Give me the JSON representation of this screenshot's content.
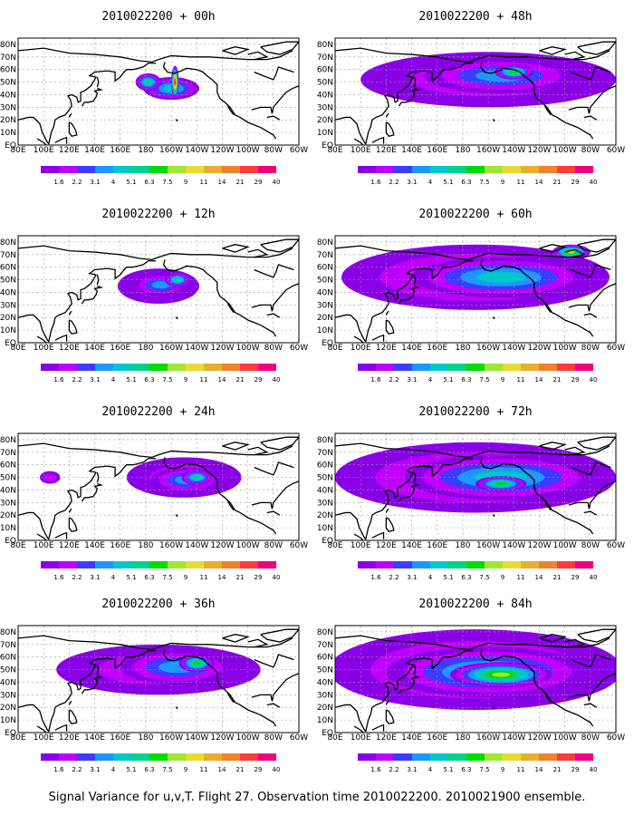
{
  "colors": {
    "land": "#ffffff",
    "coast": "#000000",
    "grid": "#9a9a9a",
    "scale": [
      "#8a00e6",
      "#c000ff",
      "#3c3cff",
      "#1e96ff",
      "#00c8c8",
      "#00d28c",
      "#00dc00",
      "#a0e632",
      "#e6dc32",
      "#e6af2d",
      "#f0822d",
      "#fa3c3c",
      "#f00082"
    ]
  },
  "colorbar": {
    "labels": [
      "1.6",
      "2.2",
      "3.1",
      "4",
      "5.1",
      "6.3",
      "7.5",
      "9",
      "11",
      "14",
      "21",
      "29",
      "40"
    ]
  },
  "axes": {
    "y_labels": [
      "80N",
      "70N",
      "60N",
      "50N",
      "40N",
      "30N",
      "20N",
      "10N",
      "EQ"
    ],
    "x_labels": [
      "80E",
      "100E",
      "120E",
      "140E",
      "160E",
      "180",
      "160W",
      "140W",
      "120W",
      "100W",
      "80W",
      "60W"
    ]
  },
  "footer": "Signal Variance for u,v,T. Flight 27. Observation time 2010022200. 2010021900 ensemble.",
  "chart_data": [
    {
      "type": "heatmap",
      "title": "2010022200 + 00h",
      "blobs": [
        {
          "lon": -160,
          "lat": 45,
          "rx": 22,
          "ry": 9,
          "level": 4
        },
        {
          "lon": -178,
          "lat": 50,
          "rx": 10,
          "ry": 7,
          "level": 5
        },
        {
          "lon": -157,
          "lat": 50,
          "rx": 3,
          "ry": 13,
          "level": 12
        }
      ]
    },
    {
      "type": "heatmap",
      "title": "2010022200 + 12h",
      "blobs": [
        {
          "lon": -170,
          "lat": 45,
          "rx": 32,
          "ry": 14,
          "level": 1
        },
        {
          "lon": -168,
          "lat": 46,
          "rx": 22,
          "ry": 9,
          "level": 3
        },
        {
          "lon": -155,
          "lat": 50,
          "rx": 10,
          "ry": 6,
          "level": 5
        }
      ]
    },
    {
      "type": "heatmap",
      "title": "2010022200 + 24h",
      "blobs": [
        {
          "lon": -150,
          "lat": 50,
          "rx": 45,
          "ry": 16,
          "level": 1
        },
        {
          "lon": -148,
          "lat": 48,
          "rx": 28,
          "ry": 10,
          "level": 3
        },
        {
          "lon": -140,
          "lat": 50,
          "rx": 12,
          "ry": 6,
          "level": 5
        },
        {
          "lon": 105,
          "lat": 50,
          "rx": 8,
          "ry": 5,
          "level": 1
        }
      ]
    },
    {
      "type": "heatmap",
      "title": "2010022200 + 36h",
      "blobs": [
        {
          "lon": -170,
          "lat": 50,
          "rx": 80,
          "ry": 20,
          "level": 1
        },
        {
          "lon": -155,
          "lat": 52,
          "rx": 45,
          "ry": 14,
          "level": 3
        },
        {
          "lon": -140,
          "lat": 55,
          "rx": 14,
          "ry": 7,
          "level": 6
        }
      ]
    },
    {
      "type": "heatmap",
      "title": "2010022200 + 48h",
      "blobs": [
        {
          "lon": -160,
          "lat": 52,
          "rx": 100,
          "ry": 22,
          "level": 1
        },
        {
          "lon": -150,
          "lat": 55,
          "rx": 60,
          "ry": 14,
          "level": 3
        },
        {
          "lon": -140,
          "lat": 58,
          "rx": 15,
          "ry": 6,
          "level": 6
        }
      ]
    },
    {
      "type": "heatmap",
      "title": "2010022200 + 60h",
      "blobs": [
        {
          "lon": -170,
          "lat": 52,
          "rx": 105,
          "ry": 26,
          "level": 2
        },
        {
          "lon": -150,
          "lat": 52,
          "rx": 70,
          "ry": 16,
          "level": 4
        },
        {
          "lon": -95,
          "lat": 72,
          "rx": 15,
          "ry": 6,
          "level": 7
        }
      ]
    },
    {
      "type": "heatmap",
      "title": "2010022200 + 72h",
      "blobs": [
        {
          "lon": -170,
          "lat": 50,
          "rx": 110,
          "ry": 28,
          "level": 2
        },
        {
          "lon": -150,
          "lat": 50,
          "rx": 75,
          "ry": 18,
          "level": 4
        },
        {
          "lon": -150,
          "lat": 45,
          "rx": 20,
          "ry": 6,
          "level": 6
        }
      ]
    },
    {
      "type": "heatmap",
      "title": "2010022200 + 84h",
      "blobs": [
        {
          "lon": -170,
          "lat": 50,
          "rx": 115,
          "ry": 32,
          "level": 2
        },
        {
          "lon": -160,
          "lat": 48,
          "rx": 80,
          "ry": 20,
          "level": 4
        },
        {
          "lon": -150,
          "lat": 46,
          "rx": 40,
          "ry": 10,
          "level": 7
        }
      ]
    }
  ]
}
